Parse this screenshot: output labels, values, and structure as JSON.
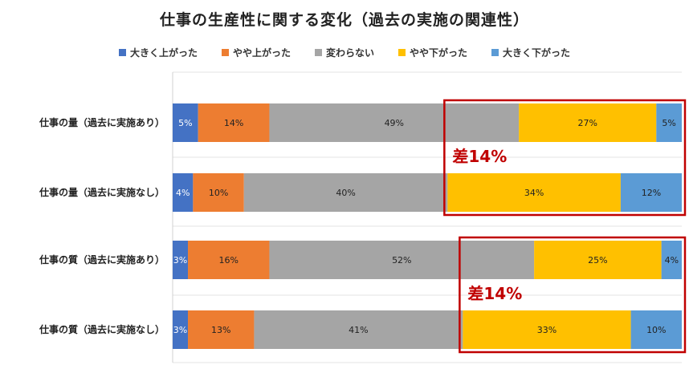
{
  "chart_data": {
    "type": "bar",
    "orientation": "horizontal-stacked-100",
    "title": "仕事の生産性に関する変化（過去の実施の関連性）",
    "categories": [
      "仕事の量（過去に実施あり）",
      "仕事の量（過去に実施なし）",
      "仕事の質（過去に実施あり）",
      "仕事の質（過去に実施なし）"
    ],
    "series": [
      {
        "name": "大きく上がった",
        "color": "#4472c4",
        "values": [
          5,
          4,
          3,
          3
        ],
        "labels": [
          "5%",
          "4%",
          "3%",
          "3%"
        ],
        "label_light": true
      },
      {
        "name": "やや上がった",
        "color": "#ed7d31",
        "values": [
          14,
          10,
          16,
          13
        ],
        "labels": [
          "14%",
          "10%",
          "16%",
          "13%"
        ],
        "label_light": false
      },
      {
        "name": "変わらない",
        "color": "#a5a5a5",
        "values": [
          49,
          40,
          52,
          41
        ],
        "labels": [
          "49%",
          "40%",
          "52%",
          "41%"
        ],
        "label_light": false
      },
      {
        "name": "やや下がった",
        "color": "#ffc000",
        "values": [
          27,
          34,
          25,
          33
        ],
        "labels": [
          "27%",
          "34%",
          "25%",
          "33%"
        ],
        "label_light": false
      },
      {
        "name": "大きく下がった",
        "color": "#5b9bd5",
        "values": [
          5,
          12,
          4,
          10
        ],
        "labels": [
          "5%",
          "12%",
          "4%",
          "10%"
        ],
        "label_light": false
      }
    ],
    "legend_position": "top",
    "grid": false,
    "annotations": [
      {
        "text": "差14%",
        "rows": [
          0,
          1
        ],
        "color": "#c00000"
      },
      {
        "text": "差14%",
        "rows": [
          2,
          3
        ],
        "color": "#c00000"
      }
    ]
  }
}
